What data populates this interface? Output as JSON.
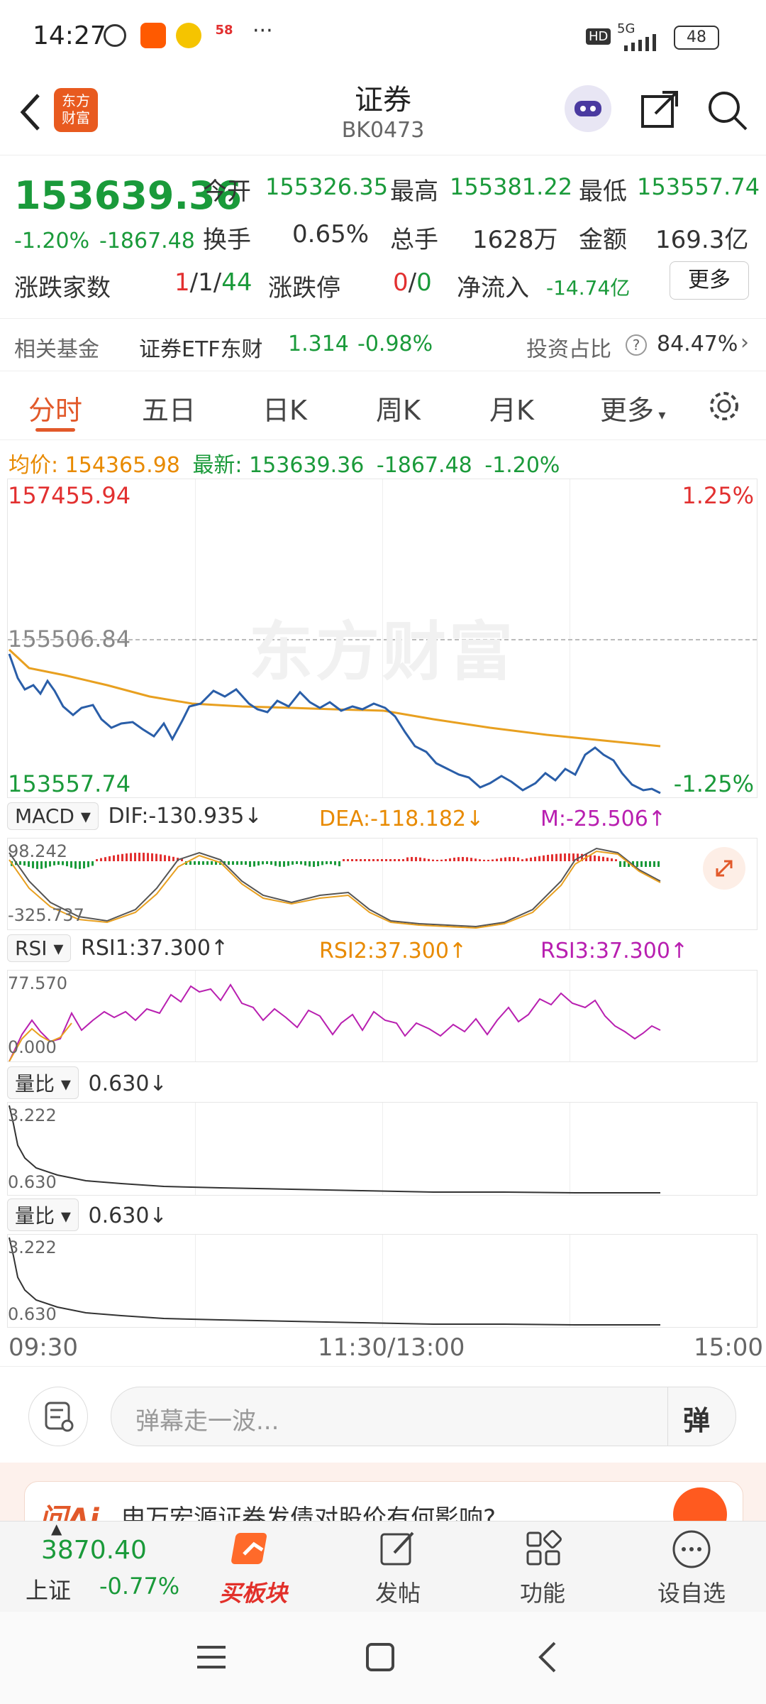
{
  "status_bar": {
    "time": "14:27",
    "network": "5G",
    "hd": "HD",
    "battery": "48",
    "more": "···",
    "app_badge_58": "58"
  },
  "header": {
    "logo_text": "东方\n财富",
    "title": "证券",
    "code": "BK0473"
  },
  "quote": {
    "price": "153639.36",
    "change_pct": "-1.20%",
    "change": "-1867.48",
    "open_label": "今开",
    "open": "155326.35",
    "high_label": "最高",
    "high": "155381.22",
    "low_label": "最低",
    "low": "153557.74",
    "turnover_label": "换手",
    "turnover": "0.65%",
    "volume_label": "总手",
    "volume": "1628万",
    "amount_label": "金额",
    "amount": "169.3亿",
    "breadth_label": "涨跌家数",
    "breadth_up": "1",
    "breadth_flat": "1",
    "breadth_down": "44",
    "limit_label": "涨跌停",
    "limit_up": "0",
    "limit_down": "0",
    "netflow_label": "净流入",
    "netflow": "-14.74亿",
    "more_button": "更多"
  },
  "fund": {
    "label": "相关基金",
    "name": "证券ETF东财",
    "price": "1.314",
    "pct": "-0.98%",
    "ratio_label": "投资占比",
    "ratio": "84.47%"
  },
  "tabs": [
    "分时",
    "五日",
    "日K",
    "周K",
    "月K",
    "更多"
  ],
  "info_line": {
    "avg_label": "均价:",
    "avg": "154365.98",
    "latest_label": "最新:",
    "latest": "153639.36",
    "chg": "-1867.48",
    "pct": "-1.20%"
  },
  "main_chart": {
    "top_price": "157455.94",
    "mid_price": "155506.84",
    "bottom_price": "153557.74",
    "top_pct": "1.25%",
    "bottom_pct": "-1.25%",
    "watermark": "东方财富"
  },
  "macd": {
    "selector": "MACD",
    "dif": "DIF:-130.935↓",
    "dea": "DEA:-118.182↓",
    "m": "M:-25.506↑",
    "top": "98.242",
    "bottom": "-325.737"
  },
  "rsi": {
    "selector": "RSI",
    "rsi1": "RSI1:37.300↑",
    "rsi2": "RSI2:37.300↑",
    "rsi3": "RSI3:37.300↑",
    "top": "77.570",
    "bottom": "0.000"
  },
  "vol1": {
    "selector": "量比",
    "value": "0.630↓",
    "top": "3.222",
    "bottom": "0.630"
  },
  "vol2": {
    "selector": "量比",
    "value": "0.630↓",
    "top": "3.222",
    "bottom": "0.630"
  },
  "time_axis": [
    "09:30",
    "11:30/13:00",
    "15:00"
  ],
  "comment": {
    "placeholder": "弹幕走一波...",
    "danmu_button": "弹"
  },
  "ai_banner": {
    "brand": "问Ai",
    "question": "申万宏源证券发债对股价有何影响?"
  },
  "bottom_bar": {
    "index_value": "3870.40",
    "index_name": "上证",
    "index_pct": "-0.77%",
    "buy_label": "买板块",
    "post_label": "发帖",
    "func_label": "功能",
    "watch_label": "设自选"
  },
  "colors": {
    "up": "#e23030",
    "down": "#1a9a3a",
    "avg_line": "#e8a020",
    "price_line": "#2a5ea8",
    "accent": "#e2592a",
    "rsi": "#b81fb0"
  }
}
